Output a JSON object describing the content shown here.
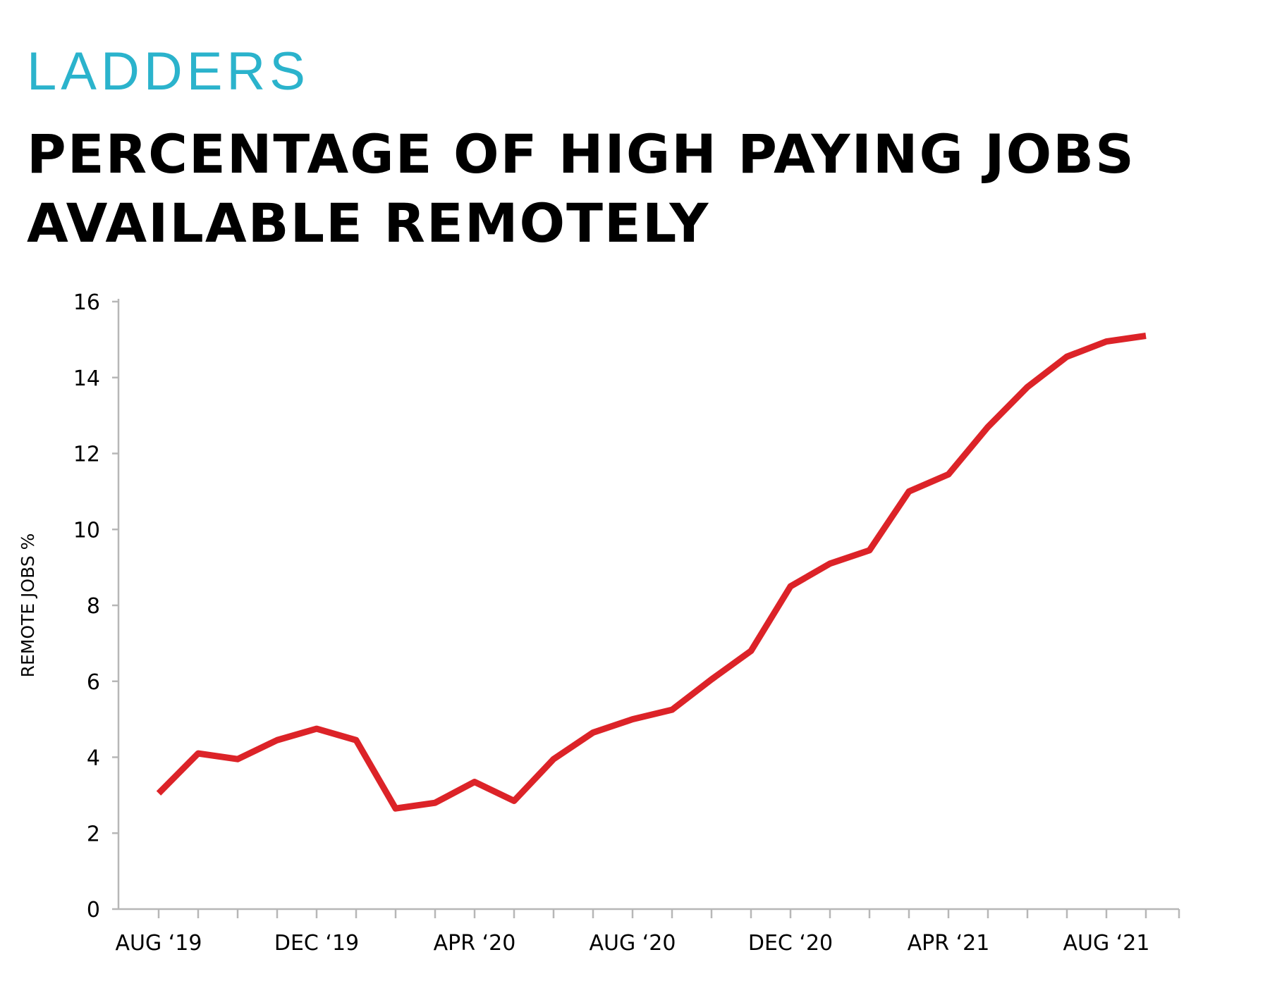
{
  "brand": "LADDERS",
  "colors": {
    "brand": "#2bb3cc",
    "line": "#dc2328",
    "axis": "#b7b7b7",
    "text": "#000000"
  },
  "chart_data": {
    "type": "line",
    "title_lines": [
      "PERCENTAGE OF HIGH PAYING JOBS",
      "AVAILABLE REMOTELY"
    ],
    "xlabel": "",
    "ylabel": "REMOTE JOBS %",
    "ylim": [
      0,
      16
    ],
    "yticks": [
      0,
      2,
      4,
      6,
      8,
      10,
      12,
      14,
      16
    ],
    "grid": false,
    "x": [
      "Aug 2019",
      "Sep 2019",
      "Oct 2019",
      "Nov 2019",
      "Dec 2019",
      "Jan 2020",
      "Feb 2020",
      "Mar 2020",
      "Apr 2020",
      "May 2020",
      "Jun 2020",
      "Jul 2020",
      "Aug 2020",
      "Sep 2020",
      "Oct 2020",
      "Nov 2020",
      "Dec 2020",
      "Jan 2021",
      "Feb 2021",
      "Mar 2021",
      "Apr 2021",
      "May 2021",
      "Jun 2021",
      "Jul 2021",
      "Aug 2021",
      "Sep 2021"
    ],
    "xtick_labels": [
      {
        "index": 0,
        "label": "AUG ‘19"
      },
      {
        "index": 4,
        "label": "DEC ‘19"
      },
      {
        "index": 8,
        "label": "APR ‘20"
      },
      {
        "index": 12,
        "label": "AUG ‘20"
      },
      {
        "index": 16,
        "label": "DEC ‘20"
      },
      {
        "index": 20,
        "label": "APR ‘21"
      },
      {
        "index": 24,
        "label": "AUG ‘21"
      }
    ],
    "series": [
      {
        "values": [
          3.05,
          4.1,
          3.95,
          4.45,
          4.75,
          4.45,
          2.65,
          2.8,
          3.35,
          2.85,
          3.95,
          4.65,
          5.0,
          5.25,
          6.05,
          6.8,
          8.5,
          9.1,
          9.45,
          11.0,
          11.45,
          12.7,
          13.75,
          14.55,
          14.95,
          15.1
        ]
      }
    ]
  }
}
